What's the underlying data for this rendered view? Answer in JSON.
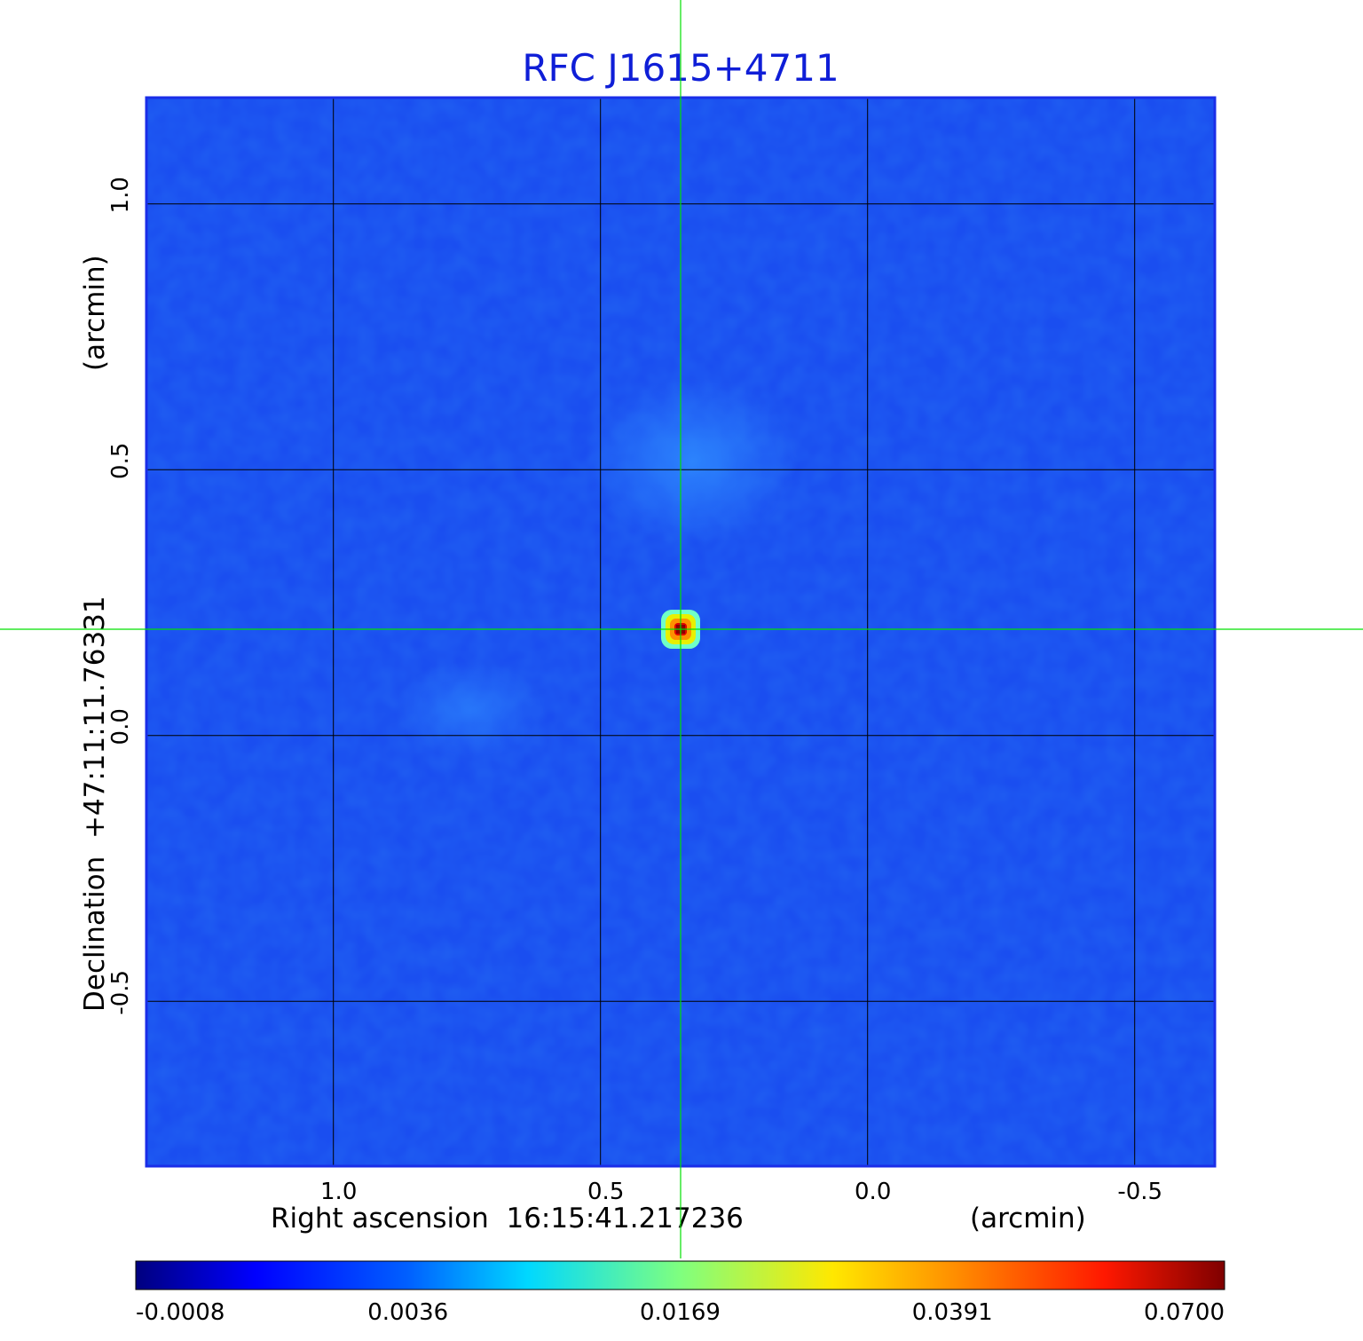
{
  "chart_data": {
    "type": "heatmap",
    "title": "RFC J1615+4711",
    "xlabel": "Right ascension  16:15:41.217236",
    "xunit": "(arcmin)",
    "ylabel": "Declination  +47:11:11.76331",
    "yunit": "(arcmin)",
    "x_ticks": [
      "1.0",
      "0.5",
      "0.0",
      "-0.5"
    ],
    "y_ticks": [
      "1.0",
      "0.5",
      "0.0",
      "-0.5"
    ],
    "x_tick_values": [
      1.0,
      0.5,
      0.0,
      -0.5
    ],
    "y_tick_values": [
      1.0,
      0.5,
      0.0,
      -0.5
    ],
    "xlim": [
      1.35,
      -0.65
    ],
    "ylim": [
      -0.81,
      1.2
    ],
    "grid": true,
    "crosshair": {
      "x": 0.35,
      "y": 0.2,
      "color": "#00e000"
    },
    "source": {
      "x": 0.35,
      "y": 0.2,
      "peak": 0.07
    },
    "background_level": -0.0008,
    "colormap": "jet",
    "colorbar": {
      "ticks": [
        "-0.0008",
        "0.0036",
        "0.0169",
        "0.0391",
        "0.0700"
      ],
      "position": "bottom"
    },
    "colors": {
      "title": "#0f1ed7",
      "background": "#1a4ef0",
      "frame": "#1a2ee8",
      "crosshair": "#00e000"
    }
  }
}
